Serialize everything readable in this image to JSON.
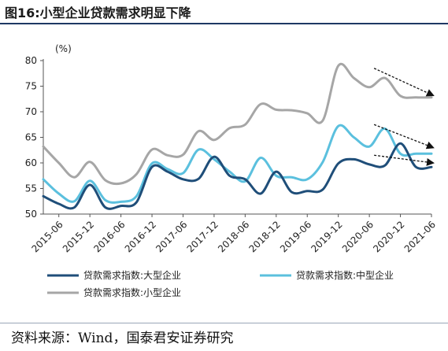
{
  "title": "图16:小型企业贷款需求明显下降",
  "source": "资料来源：Wind，国泰君安证券研究",
  "chart_data": {
    "type": "line",
    "unit_label": "(%)",
    "ylim": [
      50,
      80
    ],
    "yticks": [
      50,
      55,
      60,
      65,
      70,
      75,
      80
    ],
    "xticks": [
      "2015-06",
      "2015-12",
      "2016-06",
      "2016-12",
      "2017-06",
      "2017-12",
      "2018-06",
      "2018-12",
      "2019-06",
      "2019-12",
      "2020-06",
      "2020-12",
      "2021-06"
    ],
    "x": [
      "2015-03",
      "2015-06",
      "2015-09",
      "2015-12",
      "2016-03",
      "2016-06",
      "2016-09",
      "2016-12",
      "2017-03",
      "2017-06",
      "2017-09",
      "2017-12",
      "2018-03",
      "2018-06",
      "2018-09",
      "2018-12",
      "2019-03",
      "2019-06",
      "2019-09",
      "2019-12",
      "2020-03",
      "2020-06",
      "2020-09",
      "2020-12",
      "2021-03",
      "2021-06"
    ],
    "series": [
      {
        "name": "贷款需求指数:大型企业",
        "color": "#1f4e79",
        "values": [
          53.5,
          52.0,
          51.3,
          55.7,
          51.3,
          51.6,
          52.3,
          59.2,
          58.3,
          56.8,
          56.9,
          61.2,
          57.5,
          56.8,
          54.0,
          58.3,
          54.3,
          54.5,
          54.8,
          59.9,
          60.7,
          59.7,
          59.5,
          63.8,
          59.2,
          59.2
        ]
      },
      {
        "name": "贷款需求指数:中型企业",
        "color": "#5bc0de",
        "values": [
          56.8,
          54.0,
          52.5,
          56.5,
          52.7,
          52.4,
          53.5,
          59.9,
          58.8,
          58.0,
          62.6,
          60.7,
          58.3,
          56.4,
          61.0,
          57.5,
          57.2,
          56.8,
          60.2,
          67.2,
          65.0,
          63.2,
          66.7,
          61.8,
          61.8,
          61.8
        ]
      },
      {
        "name": "贷款需求指数:小型企业",
        "color": "#a6a6a6",
        "values": [
          63.2,
          60.0,
          57.2,
          60.2,
          56.6,
          56.0,
          57.8,
          62.6,
          61.5,
          61.6,
          66.2,
          64.5,
          66.8,
          67.5,
          71.5,
          70.4,
          70.3,
          69.7,
          68.3,
          79.0,
          76.6,
          74.8,
          76.6,
          73.1,
          72.8,
          72.8
        ]
      }
    ],
    "annotations": [
      {
        "type": "arrow",
        "from": [
          "2020-06",
          78.5
        ],
        "to": [
          "2021-06",
          73.2
        ]
      },
      {
        "type": "arrow",
        "from": [
          "2020-06",
          67.5
        ],
        "to": [
          "2021-06",
          63.0
        ]
      },
      {
        "type": "arrow",
        "from": [
          "2020-06",
          61.5
        ],
        "to": [
          "2021-06",
          60.0
        ]
      }
    ],
    "legend_placement": "bottom"
  }
}
